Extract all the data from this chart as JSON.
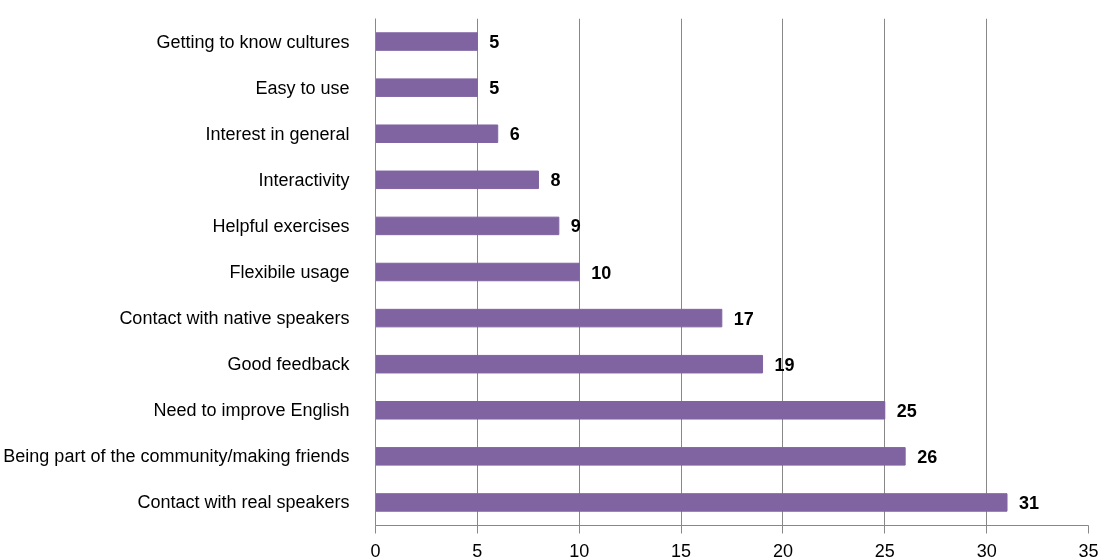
{
  "chart_data": {
    "type": "bar",
    "orientation": "horizontal",
    "categories": [
      "Getting to know cultures",
      "Easy to use",
      "Interest in general",
      "Interactivity",
      "Helpful exercises",
      "Flexibile usage",
      "Contact with native speakers",
      "Good feedback",
      "Need to improve English",
      "Being part of the community/making friends",
      "Contact with real speakers"
    ],
    "values": [
      5,
      5,
      6,
      8,
      9,
      10,
      17,
      19,
      25,
      26,
      31
    ],
    "color": "#8064a2",
    "xlim": [
      0,
      35
    ],
    "xticks": [
      0,
      5,
      10,
      15,
      20,
      25,
      30,
      35
    ],
    "grid": "x",
    "data_labels": true
  }
}
